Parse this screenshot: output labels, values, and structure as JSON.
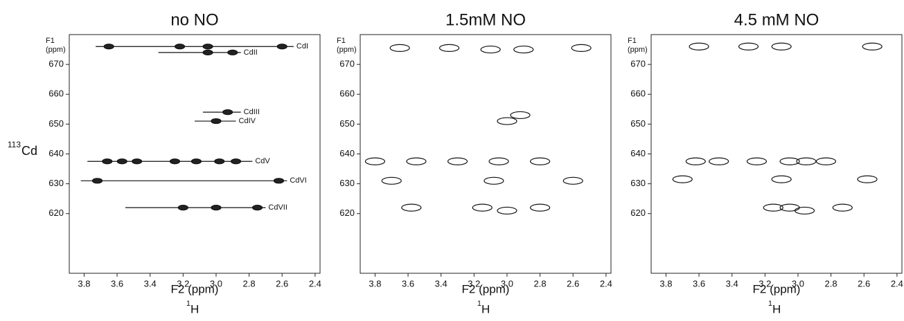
{
  "chart_data": [
    {
      "type": "contour",
      "title": "no NO",
      "style": "filled",
      "y_label_top": "F1",
      "y_label_unit": "(ppm)",
      "x_label": "F2 (ppm)",
      "x_nucleus_mass": "1",
      "x_nucleus_symbol": "H",
      "y_nucleus_mass": "113",
      "y_nucleus_symbol": "Cd",
      "xlim": [
        3.89,
        2.37
      ],
      "ylim": [
        600,
        680
      ],
      "xticks": [
        3.8,
        3.6,
        3.4,
        3.2,
        {
          "value": 3,
          "label": "3.0"
        },
        2.8,
        2.6,
        2.4
      ],
      "yticks": [
        620,
        630,
        640,
        650,
        660,
        670
      ],
      "lines": [
        {
          "label": "CdVII",
          "y": 622,
          "x": [
            3.55,
            2.7
          ]
        },
        {
          "label": "CdVI",
          "y": 631,
          "x": [
            3.82,
            2.57
          ]
        },
        {
          "label": "CdV",
          "y": 637.5,
          "x": [
            3.78,
            2.78
          ]
        },
        {
          "label": "CdIV",
          "y": 651,
          "x": [
            3.13,
            2.88
          ]
        },
        {
          "label": "CdIII",
          "y": 654,
          "x": [
            3.08,
            2.85
          ]
        },
        {
          "label": "CdII",
          "y": 674,
          "x": [
            3.35,
            2.85
          ]
        },
        {
          "label": "CdI",
          "y": 676,
          "x": [
            3.73,
            2.53
          ]
        }
      ],
      "peaks": [
        {
          "x": 3.72,
          "y": 631
        },
        {
          "x": 3.66,
          "y": 637.5
        },
        {
          "x": 3.57,
          "y": 637.5
        },
        {
          "x": 3.48,
          "y": 637.5
        },
        {
          "x": 3.25,
          "y": 637.5
        },
        {
          "x": 3.12,
          "y": 637.5
        },
        {
          "x": 2.98,
          "y": 637.5
        },
        {
          "x": 2.88,
          "y": 637.5
        },
        {
          "x": 3.0,
          "y": 622
        },
        {
          "x": 3.2,
          "y": 622
        },
        {
          "x": 2.75,
          "y": 622
        },
        {
          "x": 2.62,
          "y": 631
        },
        {
          "x": 3.0,
          "y": 651
        },
        {
          "x": 2.93,
          "y": 654
        },
        {
          "x": 3.05,
          "y": 674
        },
        {
          "x": 2.9,
          "y": 674
        },
        {
          "x": 3.65,
          "y": 676
        },
        {
          "x": 3.22,
          "y": 676
        },
        {
          "x": 3.05,
          "y": 676
        },
        {
          "x": 2.6,
          "y": 676
        }
      ]
    },
    {
      "type": "contour",
      "title": "1.5mM NO",
      "style": "outline",
      "y_label_top": "F1",
      "y_label_unit": "(ppm)",
      "x_label": "F2 (ppm)",
      "x_nucleus_mass": "1",
      "x_nucleus_symbol": "H",
      "xlim": [
        3.89,
        2.37
      ],
      "ylim": [
        600,
        680
      ],
      "xticks": [
        3.8,
        3.6,
        3.4,
        3.2,
        {
          "value": 3,
          "label": "3.0"
        },
        2.8,
        2.6,
        2.4
      ],
      "yticks": [
        620,
        630,
        640,
        650,
        660,
        670
      ],
      "peaks": [
        {
          "x": 3.58,
          "y": 622
        },
        {
          "x": 3.15,
          "y": 622
        },
        {
          "x": 3.0,
          "y": 621
        },
        {
          "x": 2.8,
          "y": 622
        },
        {
          "x": 3.7,
          "y": 631
        },
        {
          "x": 3.08,
          "y": 631
        },
        {
          "x": 2.6,
          "y": 631
        },
        {
          "x": 3.8,
          "y": 637.5
        },
        {
          "x": 3.55,
          "y": 637.5
        },
        {
          "x": 3.3,
          "y": 637.5
        },
        {
          "x": 3.05,
          "y": 637.5
        },
        {
          "x": 2.8,
          "y": 637.5
        },
        {
          "x": 3.0,
          "y": 651
        },
        {
          "x": 2.92,
          "y": 653
        },
        {
          "x": 3.65,
          "y": 675.5
        },
        {
          "x": 3.35,
          "y": 675.5
        },
        {
          "x": 3.1,
          "y": 675
        },
        {
          "x": 2.9,
          "y": 675
        },
        {
          "x": 2.55,
          "y": 675.5
        }
      ]
    },
    {
      "type": "contour",
      "title": "4.5 mM NO",
      "style": "outline",
      "y_label_top": "F1",
      "y_label_unit": "(ppm)",
      "x_label": "F2 (ppm)",
      "x_nucleus_mass": "1",
      "x_nucleus_symbol": "H",
      "xlim": [
        3.89,
        2.37
      ],
      "ylim": [
        600,
        680
      ],
      "xticks": [
        3.8,
        3.6,
        3.4,
        3.2,
        {
          "value": 3,
          "label": "3.0"
        },
        2.8,
        2.6,
        2.4
      ],
      "yticks": [
        620,
        630,
        640,
        650,
        660,
        670
      ],
      "peaks": [
        {
          "x": 3.15,
          "y": 622
        },
        {
          "x": 3.05,
          "y": 622
        },
        {
          "x": 2.96,
          "y": 621
        },
        {
          "x": 2.73,
          "y": 622
        },
        {
          "x": 3.7,
          "y": 631.5
        },
        {
          "x": 3.1,
          "y": 631.5
        },
        {
          "x": 2.58,
          "y": 631.5
        },
        {
          "x": 3.62,
          "y": 637.5
        },
        {
          "x": 3.48,
          "y": 637.5
        },
        {
          "x": 3.25,
          "y": 637.5
        },
        {
          "x": 3.05,
          "y": 637.5
        },
        {
          "x": 2.95,
          "y": 637.5
        },
        {
          "x": 2.83,
          "y": 637.5
        },
        {
          "x": 3.6,
          "y": 676
        },
        {
          "x": 3.3,
          "y": 676
        },
        {
          "x": 3.1,
          "y": 676
        },
        {
          "x": 2.55,
          "y": 676
        }
      ]
    }
  ]
}
